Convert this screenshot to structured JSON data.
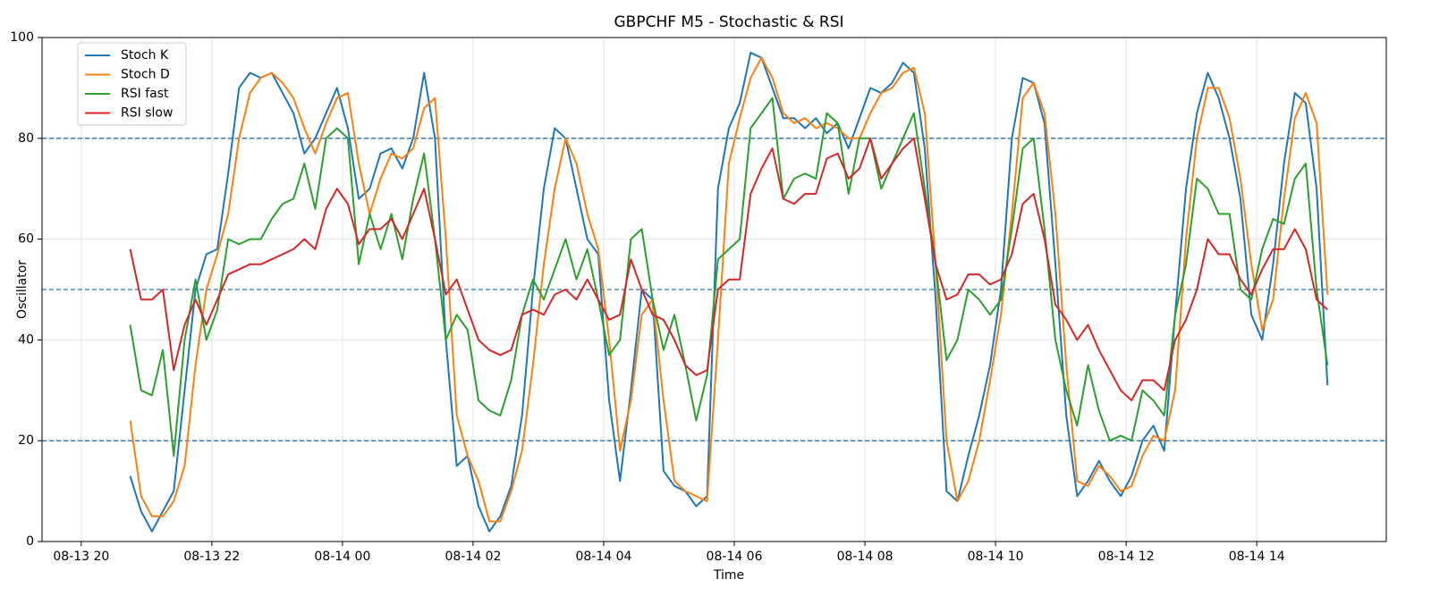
{
  "chart_data": {
    "type": "line",
    "title": "GBPCHF M5 - Stochastic & RSI",
    "x_label": "Time",
    "y_label": "Oscillator",
    "x": [
      45,
      55,
      65,
      75,
      85,
      95,
      105,
      115,
      125,
      135,
      145,
      155,
      165,
      175,
      185,
      195,
      205,
      215,
      225,
      235,
      245,
      255,
      265,
      275,
      285,
      295,
      305,
      315,
      325,
      335,
      345,
      355,
      365,
      375,
      385,
      395,
      405,
      415,
      425,
      435,
      445,
      455,
      465,
      475,
      485,
      495,
      505,
      515,
      525,
      535,
      545,
      555,
      565,
      575,
      585,
      595,
      605,
      615,
      625,
      635,
      645,
      655,
      665,
      675,
      685,
      695,
      705,
      715,
      725,
      735,
      745,
      755,
      765,
      775,
      785,
      795,
      805,
      815,
      825,
      835,
      845,
      855,
      865,
      875,
      885,
      895,
      905,
      915,
      925,
      935,
      945,
      955,
      965,
      975,
      985,
      995,
      1005,
      1015,
      1025,
      1035,
      1045,
      1055,
      1065,
      1075,
      1085,
      1095,
      1105,
      1115,
      1125,
      1135,
      1145
    ],
    "series": [
      {
        "name": "Stoch K",
        "color": "#1f77b4",
        "values": [
          13,
          6,
          2,
          6,
          10,
          30,
          50,
          57,
          58,
          73,
          90,
          93,
          92,
          93,
          89,
          85,
          77,
          80,
          85,
          90,
          82,
          68,
          70,
          77,
          78,
          74,
          80,
          93,
          80,
          40,
          15,
          17,
          7,
          2,
          5,
          11,
          25,
          50,
          70,
          82,
          80,
          70,
          60,
          57,
          28,
          12,
          30,
          50,
          48,
          14,
          11,
          10,
          7,
          9,
          70,
          82,
          87,
          97,
          96,
          90,
          84,
          84,
          82,
          84,
          81,
          83,
          78,
          84,
          90,
          89,
          91,
          95,
          93,
          78,
          48,
          10,
          8,
          17,
          25,
          35,
          50,
          80,
          92,
          91,
          83,
          55,
          25,
          9,
          12,
          16,
          12,
          9,
          13,
          20,
          23,
          18,
          45,
          70,
          85,
          93,
          88,
          80,
          68,
          45,
          40,
          55,
          75,
          89,
          87,
          70,
          31
        ]
      },
      {
        "name": "Stoch D",
        "color": "#ff7f0e",
        "values": [
          24,
          9,
          5,
          5,
          8,
          15,
          35,
          50,
          57,
          65,
          80,
          89,
          92,
          93,
          91,
          88,
          82,
          77,
          83,
          88,
          89,
          75,
          65,
          72,
          77,
          76,
          78,
          86,
          88,
          60,
          25,
          17,
          12,
          4,
          4,
          10,
          18,
          35,
          55,
          70,
          80,
          75,
          65,
          58,
          40,
          18,
          28,
          45,
          48,
          28,
          12,
          10,
          9,
          8,
          40,
          75,
          84,
          92,
          96,
          92,
          85,
          83,
          84,
          82,
          83,
          82,
          80,
          80,
          85,
          89,
          90,
          93,
          94,
          85,
          55,
          20,
          8,
          12,
          20,
          32,
          45,
          65,
          88,
          91,
          85,
          65,
          35,
          12,
          11,
          15,
          13,
          10,
          11,
          17,
          21,
          20,
          30,
          60,
          80,
          90,
          90,
          84,
          72,
          55,
          42,
          48,
          68,
          84,
          89,
          83,
          49
        ]
      },
      {
        "name": "RSI fast",
        "color": "#2ca02c",
        "values": [
          43,
          30,
          29,
          38,
          17,
          40,
          52,
          40,
          46,
          60,
          59,
          60,
          60,
          64,
          67,
          68,
          75,
          66,
          80,
          82,
          80,
          55,
          65,
          58,
          65,
          56,
          68,
          77,
          60,
          40,
          45,
          42,
          28,
          26,
          25,
          32,
          45,
          52,
          48,
          54,
          60,
          52,
          58,
          48,
          37,
          40,
          60,
          62,
          48,
          38,
          45,
          35,
          24,
          33,
          56,
          58,
          60,
          82,
          85,
          88,
          68,
          72,
          73,
          72,
          85,
          83,
          69,
          80,
          80,
          70,
          75,
          80,
          85,
          70,
          55,
          36,
          40,
          50,
          48,
          45,
          48,
          62,
          78,
          80,
          62,
          40,
          30,
          23,
          35,
          26,
          20,
          21,
          20,
          30,
          28,
          25,
          45,
          55,
          72,
          70,
          65,
          65,
          50,
          48,
          58,
          64,
          63,
          72,
          75,
          50,
          35
        ]
      },
      {
        "name": "RSI slow",
        "color": "#d62728",
        "values": [
          58,
          48,
          48,
          50,
          34,
          43,
          48,
          43,
          48,
          53,
          54,
          55,
          55,
          56,
          57,
          58,
          60,
          58,
          66,
          70,
          67,
          59,
          62,
          62,
          64,
          60,
          65,
          70,
          60,
          49,
          52,
          46,
          40,
          38,
          37,
          38,
          45,
          46,
          45,
          49,
          50,
          48,
          52,
          48,
          44,
          45,
          56,
          50,
          45,
          44,
          40,
          35,
          33,
          34,
          50,
          52,
          52,
          69,
          74,
          78,
          68,
          67,
          69,
          69,
          76,
          77,
          72,
          74,
          80,
          72,
          75,
          78,
          80,
          68,
          55,
          48,
          49,
          53,
          53,
          51,
          52,
          57,
          67,
          69,
          60,
          47,
          44,
          40,
          43,
          38,
          34,
          30,
          28,
          32,
          32,
          30,
          40,
          44,
          50,
          60,
          57,
          57,
          52,
          49,
          54,
          58,
          58,
          62,
          58,
          48,
          46
        ]
      }
    ],
    "xlim": [
      -36,
      1199
    ],
    "xticks": [
      {
        "value": 0,
        "label": "08-13 20"
      },
      {
        "value": 120,
        "label": "08-13 22"
      },
      {
        "value": 240,
        "label": "08-14 00"
      },
      {
        "value": 360,
        "label": "08-14 02"
      },
      {
        "value": 480,
        "label": "08-14 04"
      },
      {
        "value": 600,
        "label": "08-14 06"
      },
      {
        "value": 720,
        "label": "08-14 08"
      },
      {
        "value": 840,
        "label": "08-14 10"
      },
      {
        "value": 960,
        "label": "08-14 12"
      },
      {
        "value": 1080,
        "label": "08-14 14"
      }
    ],
    "ylim": [
      0,
      100
    ],
    "yticks": [
      0,
      20,
      40,
      60,
      80,
      100
    ],
    "hlines": [
      20,
      50,
      80
    ],
    "hline_color": "#1f77b4",
    "grid": true,
    "legend": "upper-left"
  }
}
